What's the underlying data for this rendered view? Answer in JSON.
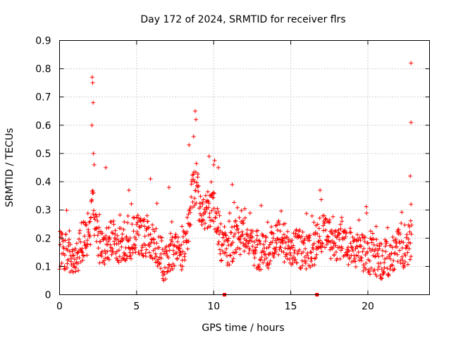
{
  "chart_data": {
    "type": "scatter",
    "title": "Day 172 of 2024, SRMTID for receiver flrs",
    "xlabel": "GPS time / hours",
    "ylabel": "SRMTID / TECUs",
    "xlim": [
      0,
      24
    ],
    "ylim": [
      0,
      0.9
    ],
    "x_ticks": [
      0,
      5,
      10,
      15,
      20
    ],
    "x_tick_labels": [
      "0",
      "5",
      "10",
      "15",
      "20"
    ],
    "y_ticks": [
      0,
      0.1,
      0.2,
      0.3,
      0.4,
      0.5,
      0.6,
      0.7,
      0.8,
      0.9
    ],
    "y_tick_labels": [
      "0",
      "0.1",
      "0.2",
      "0.3",
      "0.4",
      "0.5",
      "0.6",
      "0.7",
      "0.8",
      "0.9"
    ],
    "grid": true,
    "marker": "plus",
    "color": "#ff0000",
    "series": [
      {
        "name": "SRMTID",
        "profile_x": [
          0,
          0.5,
          1.0,
          1.5,
          2.0,
          2.1,
          2.3,
          2.7,
          3.0,
          3.5,
          4.0,
          4.5,
          5.0,
          5.5,
          6.0,
          6.5,
          6.8,
          7.2,
          7.8,
          8.2,
          8.6,
          8.9,
          9.2,
          9.5,
          10.0,
          10.5,
          11.0,
          11.5,
          12.0,
          12.5,
          13.0,
          13.5,
          14.0,
          14.5,
          15.0,
          15.5,
          16.0,
          16.5,
          17.0,
          17.5,
          18.0,
          18.5,
          19.0,
          19.5,
          20.0,
          20.5,
          21.0,
          21.5,
          22.0,
          22.5,
          22.8
        ],
        "profile_y": [
          0.16,
          0.14,
          0.1,
          0.19,
          0.22,
          0.35,
          0.25,
          0.15,
          0.18,
          0.2,
          0.17,
          0.19,
          0.21,
          0.2,
          0.19,
          0.16,
          0.1,
          0.15,
          0.14,
          0.18,
          0.35,
          0.4,
          0.25,
          0.3,
          0.32,
          0.18,
          0.16,
          0.2,
          0.22,
          0.18,
          0.15,
          0.16,
          0.2,
          0.18,
          0.15,
          0.17,
          0.14,
          0.16,
          0.22,
          0.2,
          0.18,
          0.19,
          0.16,
          0.15,
          0.14,
          0.13,
          0.12,
          0.14,
          0.17,
          0.16,
          0.2
        ],
        "spikes": [
          {
            "x": 2.12,
            "y": 0.77
          },
          {
            "x": 2.15,
            "y": 0.75
          },
          {
            "x": 2.18,
            "y": 0.68
          },
          {
            "x": 2.1,
            "y": 0.6
          },
          {
            "x": 2.2,
            "y": 0.5
          },
          {
            "x": 2.25,
            "y": 0.46
          },
          {
            "x": 3.0,
            "y": 0.45
          },
          {
            "x": 4.5,
            "y": 0.37
          },
          {
            "x": 5.9,
            "y": 0.41
          },
          {
            "x": 7.1,
            "y": 0.38
          },
          {
            "x": 8.8,
            "y": 0.65
          },
          {
            "x": 8.85,
            "y": 0.62
          },
          {
            "x": 8.7,
            "y": 0.56
          },
          {
            "x": 8.4,
            "y": 0.53
          },
          {
            "x": 9.7,
            "y": 0.49
          },
          {
            "x": 10.0,
            "y": 0.46
          },
          {
            "x": 10.3,
            "y": 0.45
          },
          {
            "x": 11.2,
            "y": 0.39
          },
          {
            "x": 16.9,
            "y": 0.37
          },
          {
            "x": 22.8,
            "y": 0.82
          },
          {
            "x": 22.8,
            "y": 0.61
          },
          {
            "x": 22.75,
            "y": 0.42
          },
          {
            "x": 22.8,
            "y": 0.32
          }
        ],
        "zero_markers": [
          {
            "x": 10.7,
            "y": 0
          },
          {
            "x": 16.7,
            "y": 0
          }
        ],
        "x_start": 0.0,
        "x_end": 22.85,
        "x_step": 0.02
      }
    ]
  }
}
